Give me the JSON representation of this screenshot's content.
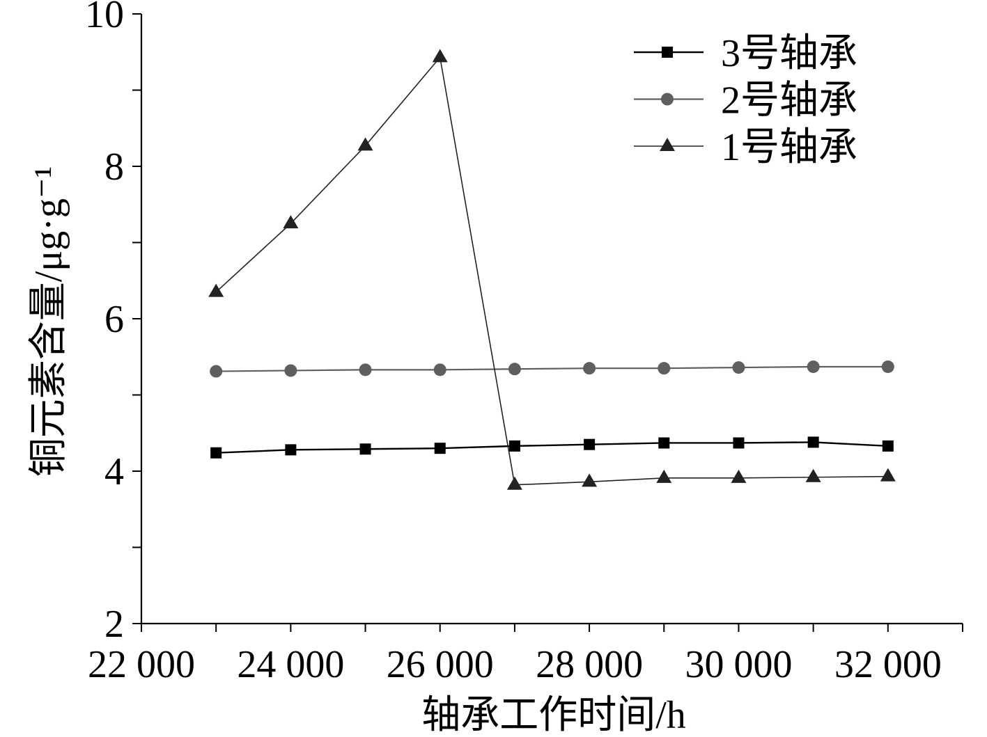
{
  "chart_data": {
    "type": "line",
    "xlabel": "轴承工作时间/h",
    "ylabel": "铜元素含量/μg·g⁻¹",
    "xlim": [
      22000,
      33000
    ],
    "ylim": [
      2,
      10
    ],
    "x_ticks": [
      22000,
      24000,
      26000,
      28000,
      30000,
      32000
    ],
    "x_tick_labels": [
      "22 000",
      "24 000",
      "26 000",
      "28 000",
      "30 000",
      "32 000"
    ],
    "x_minor_step": 1000,
    "y_ticks": [
      2,
      4,
      6,
      8,
      10
    ],
    "y_tick_labels": [
      "2",
      "4",
      "6",
      "8",
      "10"
    ],
    "y_minor_step": 1,
    "grid": false,
    "legend": "top-right",
    "x": [
      23000,
      24000,
      25000,
      26000,
      27000,
      28000,
      29000,
      30000,
      31000,
      32000
    ],
    "series": [
      {
        "name": "3号轴承",
        "marker": "square",
        "color": "#000000",
        "values": [
          4.24,
          4.28,
          4.29,
          4.3,
          4.33,
          4.35,
          4.37,
          4.37,
          4.38,
          4.33
        ]
      },
      {
        "name": "2号轴承",
        "marker": "circle",
        "color": "#5f5f5f",
        "values": [
          5.31,
          5.32,
          5.33,
          5.33,
          5.34,
          5.35,
          5.35,
          5.36,
          5.37,
          5.37
        ]
      },
      {
        "name": "1号轴承",
        "marker": "triangle",
        "color": "#222222",
        "values": [
          6.35,
          7.25,
          8.27,
          9.43,
          3.82,
          3.86,
          3.91,
          3.91,
          3.92,
          3.93
        ]
      }
    ]
  }
}
